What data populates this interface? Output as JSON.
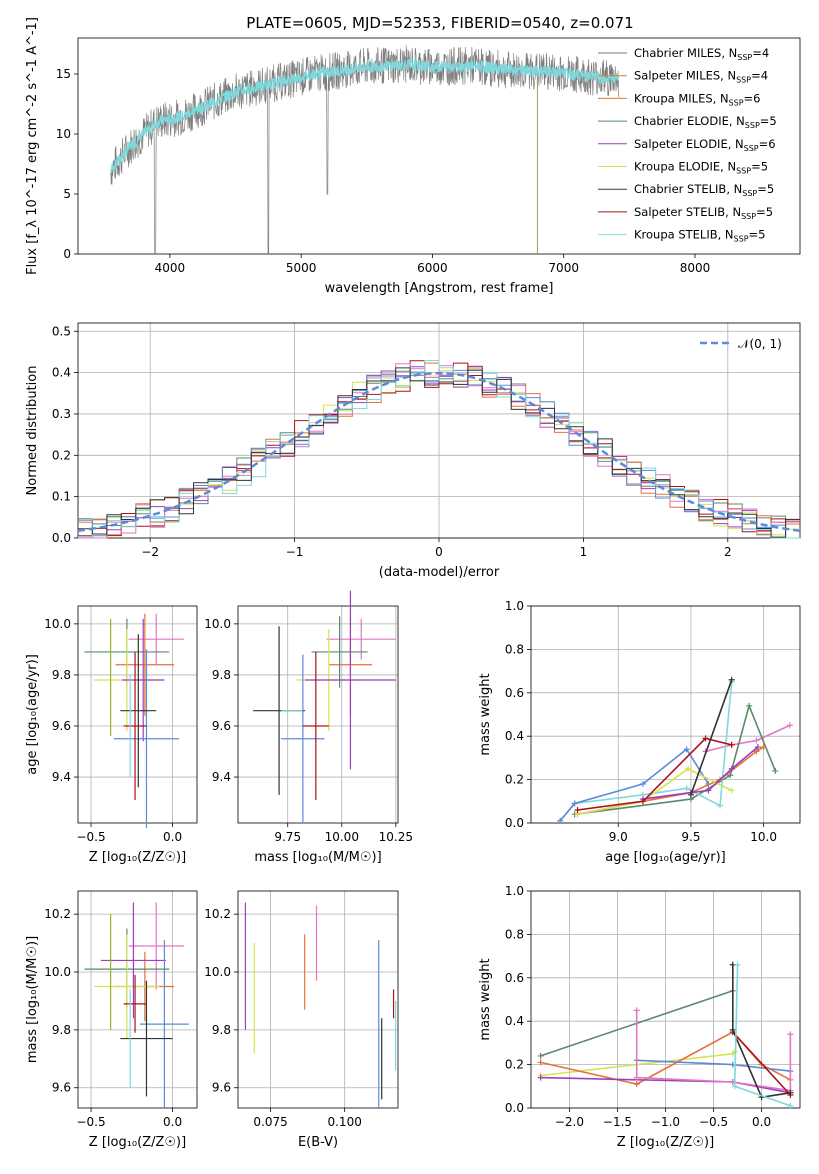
{
  "figure_title": "PLATE=0605, MJD=52353, FIBERID=0540, z=0.071",
  "legend_labels": [
    {
      "name": "Chabrier MILES",
      "n": "4",
      "color": "#6b7b8c"
    },
    {
      "name": "Salpeter MILES",
      "n": "4",
      "color": "#e8703a"
    },
    {
      "name": "Kroupa MILES",
      "n": "6",
      "color": "#d97d2a"
    },
    {
      "name": "Chabrier ELODIE",
      "n": "5",
      "color": "#5a8a6a"
    },
    {
      "name": "Salpeter ELODIE",
      "n": "6",
      "color": "#9b3fbf"
    },
    {
      "name": "Kroupa ELODIE",
      "n": "5",
      "color": "#d4e34f"
    },
    {
      "name": "Chabrier STELIB",
      "n": "5",
      "color": "#3a3a3a"
    },
    {
      "name": "Salpeter STELIB",
      "n": "5",
      "color": "#b0101a"
    },
    {
      "name": "Kroupa STELIB",
      "n": "5",
      "color": "#7fe0e0"
    }
  ],
  "colors": {
    "spectrum": "#7f7f7f",
    "model": "#7fd8dc",
    "pink": "#e377c2",
    "blue": "#5b8bd8",
    "green": "#5a8a6a",
    "olive": "#8fba2a",
    "yellow": "#d4e34f",
    "orange": "#e8703a",
    "purple": "#9b3fbf",
    "black": "#333333",
    "red": "#b0101a",
    "cyan": "#7fd8dc"
  },
  "chart_data": [
    {
      "id": "spectrum",
      "type": "line",
      "xlabel": "wavelength [Angstrom, rest frame]",
      "ylabel": "Flux [f_λ 10^-17 erg cm^-2 s^-1 A^-1]",
      "xlim": [
        3300,
        8800
      ],
      "ylim": [
        0,
        18
      ],
      "xticks": [
        "4000",
        "5000",
        "6000",
        "7000",
        "8000"
      ],
      "yticks": [
        "0",
        "5",
        "10",
        "15"
      ],
      "profile_x": [
        3550,
        3700,
        3900,
        4100,
        4300,
        4500,
        4700,
        4900,
        5100,
        5300,
        5500,
        5800,
        6000,
        6300,
        6600,
        6900,
        7200,
        7400,
        7500
      ],
      "profile_y": [
        7,
        9,
        11,
        11.5,
        12.5,
        13.5,
        14,
        14.5,
        15,
        15.3,
        15.6,
        15.8,
        15.6,
        15.7,
        15.3,
        15.2,
        14.8,
        14.6,
        14.4
      ]
    },
    {
      "id": "residual_hist",
      "type": "histogram",
      "xlabel": "(data-model)/error",
      "ylabel": "Normed distribution",
      "xlim": [
        -2.5,
        2.5
      ],
      "ylim": [
        0,
        0.52
      ],
      "xticks": [
        "−2",
        "−1",
        "0",
        "1",
        "2"
      ],
      "yticks": [
        "0.0",
        "0.1",
        "0.2",
        "0.3",
        "0.4",
        "0.5"
      ],
      "legend": "𝒩(0, 1)"
    },
    {
      "id": "age_vs_Z",
      "type": "scatter",
      "xlabel": "Z [log₁₀(Z/Z☉)]",
      "ylabel": "age  [log₁₀(age/yr)]",
      "xlim": [
        -0.58,
        0.15
      ],
      "ylim": [
        9.22,
        10.07
      ],
      "xticks": [
        "−0.5",
        "0.0"
      ],
      "yticks": [
        "9.4",
        "9.6",
        "9.8",
        "10.0"
      ],
      "points": [
        {
          "c": "pink",
          "x": -0.1,
          "y": 9.94,
          "xe": 0.17,
          "ye": 0.1
        },
        {
          "c": "orange",
          "x": -0.17,
          "y": 9.84,
          "xe": 0.18,
          "ye": 0.2
        },
        {
          "c": "green",
          "x": -0.28,
          "y": 9.89,
          "xe": 0.26,
          "ye": 0.13
        },
        {
          "c": "yellow",
          "x": -0.28,
          "y": 9.78,
          "xe": 0.2,
          "ye": 0.2
        },
        {
          "c": "purple",
          "x": -0.18,
          "y": 9.78,
          "xe": 0.13,
          "ye": 0.24
        },
        {
          "c": "blue",
          "x": -0.16,
          "y": 9.55,
          "xe": 0.2,
          "ye": 0.35
        },
        {
          "c": "black",
          "x": -0.21,
          "y": 9.66,
          "xe": 0.11,
          "ye": 0.3
        },
        {
          "c": "red",
          "x": -0.23,
          "y": 9.6,
          "xe": 0.07,
          "ye": 0.29
        },
        {
          "c": "olive",
          "x": -0.38,
          "y": 9.79,
          "xe": 0.0,
          "ye": 0.23
        },
        {
          "c": "cyan",
          "x": -0.26,
          "y": 9.6,
          "xe": 0.0,
          "ye": 0.2
        }
      ]
    },
    {
      "id": "age_vs_mass",
      "type": "scatter",
      "xlabel": "mass [log₁₀(M/M☉)]",
      "ylabel": "",
      "xlim": [
        9.52,
        10.26
      ],
      "ylim": [
        9.22,
        10.07
      ],
      "xticks": [
        "9.75",
        "10.00",
        "10.25"
      ],
      "yticks": [
        "9.4",
        "9.6",
        "9.8",
        "10.0"
      ],
      "points": [
        {
          "c": "pink",
          "x": 10.09,
          "y": 9.94,
          "xe": 0.16,
          "ye": 0.08
        },
        {
          "c": "orange",
          "x": 10.04,
          "y": 9.84,
          "xe": 0.1,
          "ye": 0.2
        },
        {
          "c": "green",
          "x": 9.99,
          "y": 9.89,
          "xe": 0.13,
          "ye": 0.14
        },
        {
          "c": "yellow",
          "x": 9.94,
          "y": 9.78,
          "xe": 0.15,
          "ye": 0.2
        },
        {
          "c": "purple",
          "x": 10.04,
          "y": 9.78,
          "xe": 0.21,
          "ye": 0.35
        },
        {
          "c": "blue",
          "x": 9.82,
          "y": 9.55,
          "xe": 0.1,
          "ye": 0.33
        },
        {
          "c": "black",
          "x": 9.71,
          "y": 9.66,
          "xe": 0.12,
          "ye": 0.33
        },
        {
          "c": "red",
          "x": 9.88,
          "y": 9.6,
          "xe": 0.06,
          "ye": 0.29
        },
        {
          "c": "cyan",
          "x": 9.77,
          "y": 9.66,
          "xe": 0.05,
          "ye": 0.0
        }
      ]
    },
    {
      "id": "weight_vs_age",
      "type": "line",
      "xlabel": "age  [log₁₀(age/yr)]",
      "ylabel": "mass weight",
      "xlim": [
        8.4,
        10.25
      ],
      "ylim": [
        0,
        1
      ],
      "xticks": [
        "9.0",
        "9.5",
        "10.0"
      ],
      "yticks": [
        "0.0",
        "0.2",
        "0.4",
        "0.6",
        "0.8",
        "1.0"
      ],
      "series": [
        {
          "c": "pink",
          "x": [
            9.6,
            9.78,
            9.95,
            10.18
          ],
          "y": [
            0.33,
            0.36,
            0.38,
            0.45
          ]
        },
        {
          "c": "green",
          "x": [
            8.7,
            9.5,
            9.77,
            9.9,
            10.08
          ],
          "y": [
            0.04,
            0.11,
            0.22,
            0.54,
            0.24
          ]
        },
        {
          "c": "cyan",
          "x": [
            8.6,
            8.7,
            9.17,
            9.47,
            9.7,
            9.78
          ],
          "y": [
            0.01,
            0.09,
            0.13,
            0.16,
            0.08,
            0.65
          ]
        },
        {
          "c": "blue",
          "x": [
            8.6,
            8.7,
            9.17,
            9.47,
            9.62
          ],
          "y": [
            0.01,
            0.09,
            0.18,
            0.34,
            0.18
          ]
        },
        {
          "c": "orange",
          "x": [
            8.72,
            9.17,
            9.5,
            9.7,
            9.95,
            10.0
          ],
          "y": [
            0.04,
            0.1,
            0.14,
            0.2,
            0.33,
            0.35
          ]
        },
        {
          "c": "yellow",
          "x": [
            8.72,
            9.17,
            9.48,
            9.78
          ],
          "y": [
            0.04,
            0.1,
            0.25,
            0.15
          ]
        },
        {
          "c": "purple",
          "x": [
            9.17,
            9.5,
            9.62,
            9.78,
            9.96
          ],
          "y": [
            0.11,
            0.14,
            0.15,
            0.25,
            0.35
          ]
        },
        {
          "c": "red",
          "x": [
            8.72,
            9.17,
            9.6,
            9.78
          ],
          "y": [
            0.06,
            0.1,
            0.39,
            0.36
          ]
        },
        {
          "c": "black",
          "x": [
            9.5,
            9.78
          ],
          "y": [
            0.13,
            0.66
          ]
        }
      ]
    },
    {
      "id": "mass_vs_Z",
      "type": "scatter",
      "xlabel": "Z [log₁₀(Z/Z☉)]",
      "ylabel": "mass [log₁₀(M/M☉)]",
      "xlim": [
        -0.58,
        0.15
      ],
      "ylim": [
        9.53,
        10.28
      ],
      "xticks": [
        "−0.5",
        "0.0"
      ],
      "yticks": [
        "9.6",
        "9.8",
        "10.0",
        "10.2"
      ],
      "points": [
        {
          "c": "pink",
          "x": -0.1,
          "y": 10.09,
          "xe": 0.17,
          "ye": 0.15
        },
        {
          "c": "orange",
          "x": -0.17,
          "y": 9.95,
          "xe": 0.18,
          "ye": 0.12
        },
        {
          "c": "green",
          "x": -0.28,
          "y": 10.01,
          "xe": 0.26,
          "ye": 0.14
        },
        {
          "c": "yellow",
          "x": -0.28,
          "y": 9.95,
          "xe": 0.2,
          "ye": 0.18
        },
        {
          "c": "purple",
          "x": -0.24,
          "y": 10.04,
          "xe": 0.2,
          "ye": 0.2
        },
        {
          "c": "blue",
          "x": -0.05,
          "y": 9.82,
          "xe": 0.15,
          "ye": 0.29
        },
        {
          "c": "black",
          "x": -0.16,
          "y": 9.77,
          "xe": 0.16,
          "ye": 0.2
        },
        {
          "c": "red",
          "x": -0.23,
          "y": 9.89,
          "xe": 0.07,
          "ye": 0.1
        },
        {
          "c": "olive",
          "x": -0.38,
          "y": 10.0,
          "xe": 0.0,
          "ye": 0.2
        },
        {
          "c": "cyan",
          "x": -0.26,
          "y": 9.77,
          "xe": 0.0,
          "ye": 0.17
        }
      ]
    },
    {
      "id": "mass_vs_ebv",
      "type": "scatter",
      "xlabel": "E(B-V)",
      "ylabel": "",
      "xlim": [
        0.064,
        0.118
      ],
      "ylim": [
        9.53,
        10.28
      ],
      "xticks": [
        "0.075",
        "0.100"
      ],
      "yticks": [
        "9.6",
        "9.8",
        "10.0",
        "10.2"
      ],
      "points": [
        {
          "c": "purple",
          "x": 0.0665,
          "y": 10.02,
          "xe": 0,
          "ye": 0.22
        },
        {
          "c": "yellow",
          "x": 0.0695,
          "y": 9.91,
          "xe": 0,
          "ye": 0.19
        },
        {
          "c": "orange",
          "x": 0.0865,
          "y": 10.0,
          "xe": 0,
          "ye": 0.13
        },
        {
          "c": "pink",
          "x": 0.0905,
          "y": 10.1,
          "xe": 0,
          "ye": 0.13
        },
        {
          "c": "blue",
          "x": 0.1115,
          "y": 9.82,
          "xe": 0,
          "ye": 0.29
        },
        {
          "c": "black",
          "x": 0.1125,
          "y": 9.7,
          "xe": 0,
          "ye": 0.14
        },
        {
          "c": "red",
          "x": 0.1165,
          "y": 9.89,
          "xe": 0,
          "ye": 0.05
        },
        {
          "c": "cyan",
          "x": 0.1172,
          "y": 9.78,
          "xe": 0,
          "ye": 0.12
        }
      ]
    },
    {
      "id": "weight_vs_Z",
      "type": "line",
      "xlabel": "Z [log₁₀(Z/Z☉)]",
      "ylabel": "mass weight",
      "xlim": [
        -2.4,
        0.4
      ],
      "ylim": [
        0,
        1
      ],
      "xticks": [
        "−2.0",
        "−1.5",
        "−1.0",
        "−0.5",
        "0.0"
      ],
      "yticks": [
        "0.0",
        "0.2",
        "0.4",
        "0.6",
        "0.8",
        "1.0"
      ],
      "series": [
        {
          "c": "green",
          "x": [
            -2.3,
            -0.3
          ],
          "y": [
            0.24,
            0.54
          ]
        },
        {
          "c": "yellow",
          "x": [
            -2.3,
            -0.3,
            -0.28
          ],
          "y": [
            0.15,
            0.25,
            0.26
          ]
        },
        {
          "c": "orange",
          "x": [
            -2.3,
            -1.3,
            -0.3,
            0.0,
            0.3
          ],
          "y": [
            0.21,
            0.11,
            0.35,
            0.2,
            0.13
          ]
        },
        {
          "c": "purple",
          "x": [
            -2.3,
            -0.3,
            0.3
          ],
          "y": [
            0.14,
            0.12,
            0.07
          ]
        },
        {
          "c": "blue",
          "x": [
            -1.3,
            -0.3,
            0.3
          ],
          "y": [
            0.22,
            0.2,
            0.17
          ]
        },
        {
          "c": "pink",
          "x": [
            -1.3,
            -1.3,
            -0.3,
            0.3,
            0.3
          ],
          "y": [
            0.45,
            0.14,
            0.12,
            0.08,
            0.34
          ]
        },
        {
          "c": "red",
          "x": [
            -0.3,
            0.3
          ],
          "y": [
            0.35,
            0.06
          ]
        },
        {
          "c": "black",
          "x": [
            -0.3,
            -0.3,
            0.0,
            0.3
          ],
          "y": [
            0.66,
            0.36,
            0.05,
            0.07
          ]
        },
        {
          "c": "cyan",
          "x": [
            -0.25,
            -0.28,
            0.3
          ],
          "y": [
            0.66,
            0.1,
            0.01
          ]
        }
      ]
    }
  ]
}
